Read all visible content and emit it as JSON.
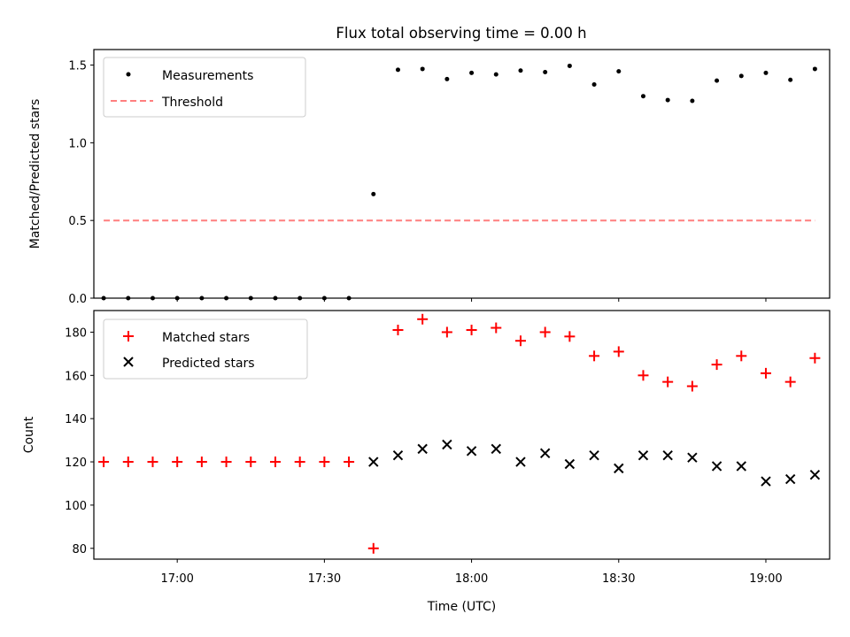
{
  "chart_data": [
    {
      "type": "scatter",
      "title": "Flux total observing time = 0.00 h",
      "xlabel": "",
      "ylabel": "Matched/Predicted stars",
      "ylim": [
        0,
        1.6
      ],
      "yticks": [
        0.0,
        0.5,
        1.0,
        1.5
      ],
      "ytick_labels": [
        "0.0",
        "0.5",
        "1.0",
        "1.5"
      ],
      "xlim": [
        "16:43",
        "19:13"
      ],
      "x": [
        "16:45",
        "16:50",
        "16:55",
        "17:00",
        "17:05",
        "17:10",
        "17:15",
        "17:20",
        "17:25",
        "17:30",
        "17:35",
        "17:40",
        "17:45",
        "17:50",
        "17:55",
        "18:00",
        "18:05",
        "18:10",
        "18:15",
        "18:20",
        "18:25",
        "18:30",
        "18:35",
        "18:40",
        "18:45",
        "18:50",
        "18:55",
        "19:00",
        "19:05",
        "19:10"
      ],
      "series": [
        {
          "name": "Measurements",
          "marker": "dot",
          "color": "#000000",
          "values": [
            0,
            0,
            0,
            0,
            0,
            0,
            0,
            0,
            0,
            0,
            0,
            0.67,
            1.47,
            1.475,
            1.41,
            1.45,
            1.44,
            1.465,
            1.455,
            1.495,
            1.375,
            1.46,
            1.3,
            1.275,
            1.27,
            1.4,
            1.43,
            1.45,
            1.405,
            1.475
          ]
        },
        {
          "name": "Threshold",
          "marker": "dashed-line",
          "color": "#ff7f7f",
          "x": [
            "16:45",
            "19:10"
          ],
          "values": [
            0.5,
            0.5
          ]
        }
      ],
      "legend": "top-left"
    },
    {
      "type": "scatter",
      "title": "",
      "xlabel": "Time (UTC)",
      "ylabel": "Count",
      "ylim": [
        75,
        190
      ],
      "yticks": [
        80,
        100,
        120,
        140,
        160,
        180
      ],
      "ytick_labels": [
        "80",
        "100",
        "120",
        "140",
        "160",
        "180"
      ],
      "xlim": [
        "16:43",
        "19:13"
      ],
      "xticks": [
        "17:00",
        "17:30",
        "18:00",
        "18:30",
        "19:00"
      ],
      "x": [
        "16:45",
        "16:50",
        "16:55",
        "17:00",
        "17:05",
        "17:10",
        "17:15",
        "17:20",
        "17:25",
        "17:30",
        "17:35",
        "17:40",
        "17:45",
        "17:50",
        "17:55",
        "18:00",
        "18:05",
        "18:10",
        "18:15",
        "18:20",
        "18:25",
        "18:30",
        "18:35",
        "18:40",
        "18:45",
        "18:50",
        "18:55",
        "19:00",
        "19:05",
        "19:10"
      ],
      "series": [
        {
          "name": "Matched stars",
          "marker": "plus",
          "color": "#ff0000",
          "values": [
            120,
            120,
            120,
            120,
            120,
            120,
            120,
            120,
            120,
            120,
            120,
            80,
            181,
            186,
            180,
            181,
            182,
            176,
            180,
            178,
            169,
            171,
            160,
            157,
            155,
            165,
            169,
            161,
            157,
            168
          ]
        },
        {
          "name": "Predicted stars",
          "marker": "x",
          "color": "#000000",
          "x": [
            "17:40",
            "17:45",
            "17:50",
            "17:55",
            "18:00",
            "18:05",
            "18:10",
            "18:15",
            "18:20",
            "18:25",
            "18:30",
            "18:35",
            "18:40",
            "18:45",
            "18:50",
            "18:55",
            "19:00",
            "19:05",
            "19:10"
          ],
          "values": [
            120,
            123,
            126,
            128,
            125,
            126,
            120,
            124,
            119,
            123,
            117,
            123,
            123,
            122,
            118,
            118,
            111,
            112,
            114
          ]
        }
      ],
      "legend": "top-left"
    }
  ]
}
